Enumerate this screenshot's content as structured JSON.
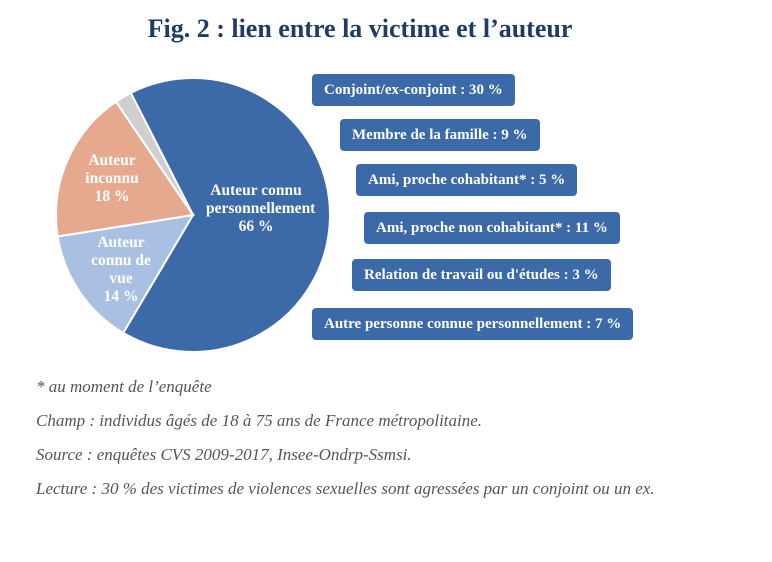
{
  "title": "Fig. 2 : lien entre la victime et l’auteur",
  "chart_data": {
    "type": "pie",
    "slices": [
      {
        "label": "Auteur connu personnellement",
        "pct_label": "66 %",
        "value": 66,
        "color": "#3c6aa8"
      },
      {
        "label": "Auteur connu de vue",
        "pct_label": "14 %",
        "value": 14,
        "color": "#a9c0e2"
      },
      {
        "label": "Auteur inconnu",
        "pct_label": "18 %",
        "value": 18,
        "color": "#e7a98d"
      },
      {
        "label": "",
        "pct_label": "",
        "value": 2,
        "color": "#cfcfcf"
      }
    ],
    "breakdown": [
      {
        "label": "Conjoint/ex-conjoint",
        "value": 30,
        "text": "Conjoint/ex-conjoint : 30 %"
      },
      {
        "label": "Membre de la famille",
        "value": 9,
        "text": "Membre de la famille : 9 %"
      },
      {
        "label": "Ami, proche cohabitant*",
        "value": 5,
        "text": "Ami, proche cohabitant* : 5 %"
      },
      {
        "label": "Ami, proche non cohabitant*",
        "value": 11,
        "text": "Ami, proche non cohabitant* : 11 %"
      },
      {
        "label": "Relation de travail ou d'études",
        "value": 3,
        "text": "Relation de travail ou d'études : 3 %"
      },
      {
        "label": "Autre personne connue personnellement",
        "value": 7,
        "text": "Autre personne connue personnellement : 7 %"
      }
    ]
  },
  "notes": {
    "footnote": "* au moment de l’enquête",
    "champ": "Champ : individus âgés de 18 à 75 ans de France métropolitaine.",
    "source": "Source : enquêtes CVS 2009-2017, Insee-Ondrp-Ssmsi.",
    "lecture": "Lecture : 30 % des victimes de violences sexuelles sont agressées par un conjoint ou un ex."
  }
}
